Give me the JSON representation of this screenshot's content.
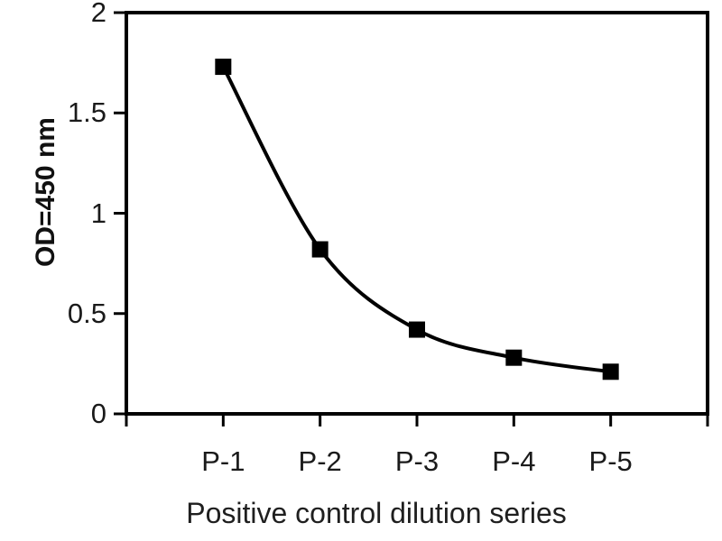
{
  "chart_data": {
    "type": "line",
    "categories": [
      "P-1",
      "P-2",
      "P-3",
      "P-4",
      "P-5"
    ],
    "values": [
      1.73,
      0.82,
      0.42,
      0.28,
      0.21
    ],
    "title": "",
    "xlabel": "Positive control dilution series",
    "ylabel": "OD=450 nm",
    "ylim": [
      0,
      2
    ],
    "yticks": [
      0,
      0.5,
      1,
      1.5,
      2
    ],
    "ytick_labels": [
      "0",
      "0.5",
      "1",
      "1.5",
      "2"
    ],
    "legend": "none",
    "grid": "off",
    "line_style": "smooth",
    "marker": "square",
    "colors": {
      "line": "#000000",
      "marker": "#000000",
      "frame": "#000000",
      "text": "#1a1a1a",
      "background": "#ffffff"
    }
  }
}
